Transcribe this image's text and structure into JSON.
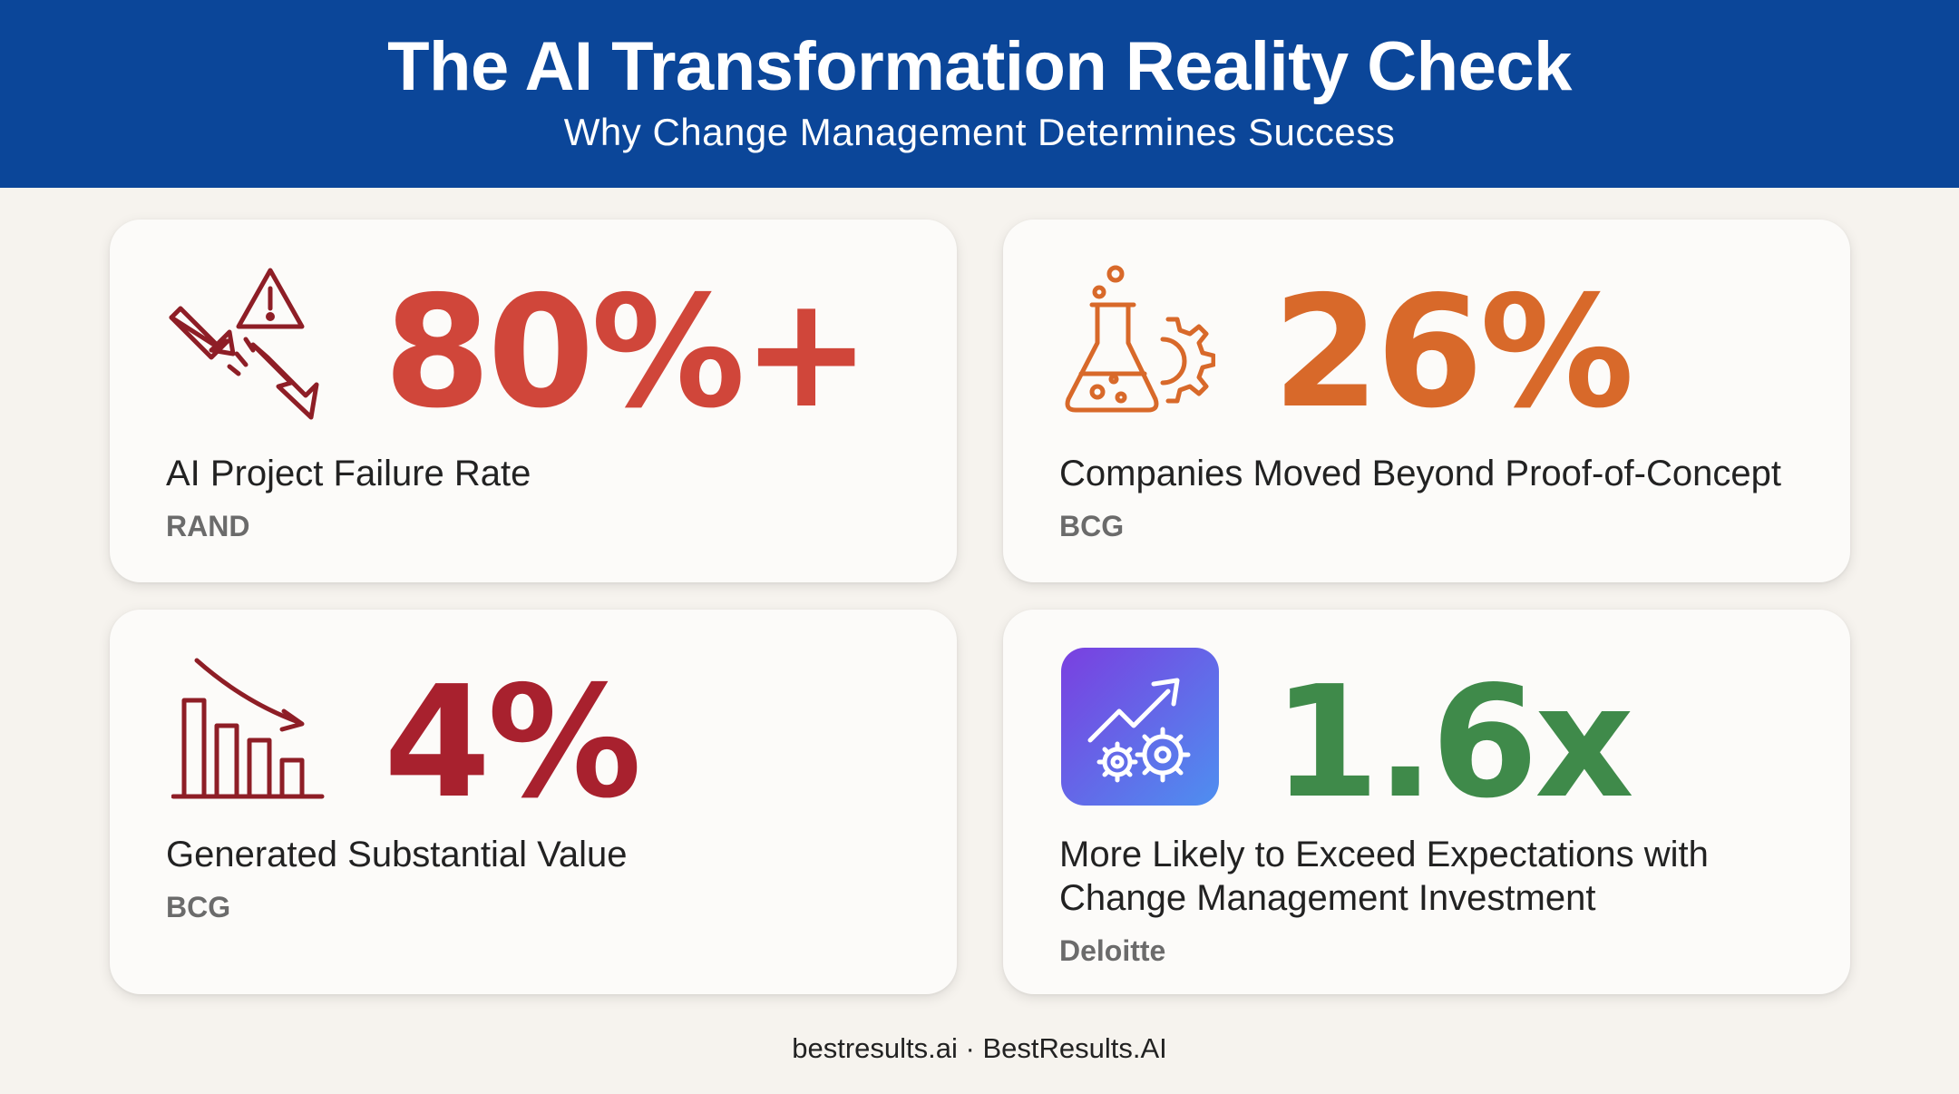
{
  "header": {
    "title": "The AI Transformation Reality Check",
    "subtitle": "Why Change Management Determines Success"
  },
  "colors": {
    "header_bg": "#0b4699",
    "failure_red": "#d0463a",
    "orange": "#d8692a",
    "dark_red": "#a8212e",
    "green": "#3f8a4a",
    "source_gray": "#6b6b6b"
  },
  "stats": [
    {
      "value": "80%+",
      "label": "AI Project Failure Rate",
      "source": "RAND",
      "icon": "failure-warning-icon"
    },
    {
      "value": "26%",
      "label": "Companies Moved Beyond Proof-of-Concept",
      "source": "BCG",
      "icon": "flask-gear-icon"
    },
    {
      "value": "4%",
      "label": "Generated Substantial Value",
      "source": "BCG",
      "icon": "declining-bar-chart-icon"
    },
    {
      "value": "1.6x",
      "label_line1": "More Likely to Exceed Expectations with",
      "label_line2": "Change Management Investment",
      "source": "Deloitte",
      "icon": "growth-gears-icon"
    }
  ],
  "footer": "bestresults.ai · BestResults.AI"
}
